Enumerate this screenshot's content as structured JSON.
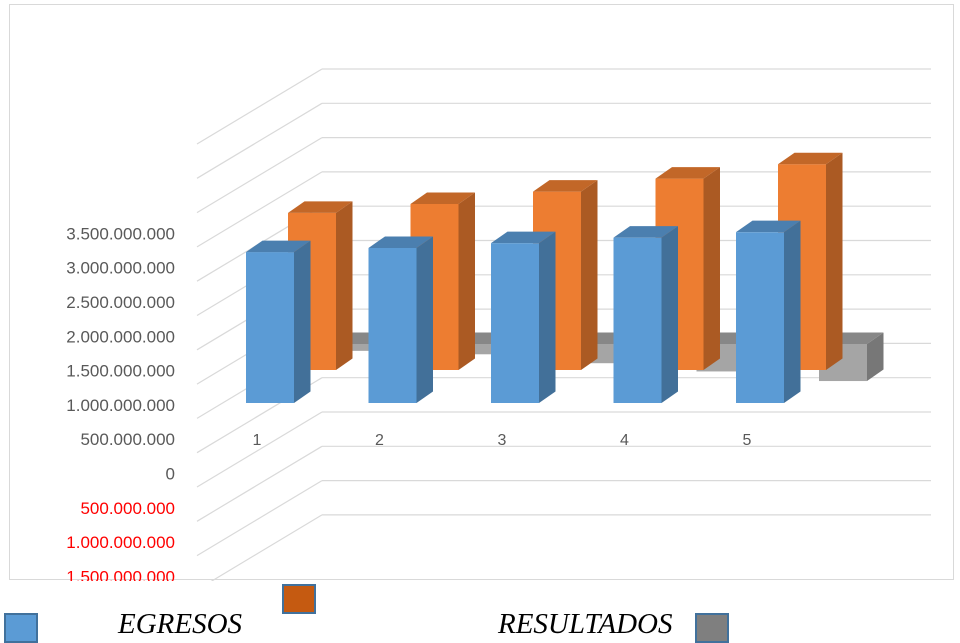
{
  "chart_data": {
    "type": "bar",
    "style": "3d-clustered-column",
    "categories": [
      "1",
      "2",
      "3",
      "4",
      "5"
    ],
    "series": [
      {
        "name": "EGRESOS",
        "color": "#5b9bd5",
        "values": [
          2200000000,
          2260000000,
          2330000000,
          2410000000,
          2490000000
        ]
      },
      {
        "color": "#ed7d31",
        "values": [
          2290000000,
          2420000000,
          2600000000,
          2790000000,
          3000000000
        ]
      },
      {
        "name": "RESULTADOS",
        "color": "#a5a5a5",
        "values": [
          -100000000,
          -150000000,
          -280000000,
          -400000000,
          -540000000
        ]
      }
    ],
    "ylim": [
      -1500000000,
      3500000000
    ],
    "yticks": [
      {
        "label": "3.500.000.000",
        "value": 3500000000,
        "color": "#595959"
      },
      {
        "label": "3.000.000.000",
        "value": 3000000000,
        "color": "#595959"
      },
      {
        "label": "2.500.000.000",
        "value": 2500000000,
        "color": "#595959"
      },
      {
        "label": "2.000.000.000",
        "value": 2000000000,
        "color": "#595959"
      },
      {
        "label": "1.500.000.000",
        "value": 1500000000,
        "color": "#595959"
      },
      {
        "label": "1.000.000.000",
        "value": 1000000000,
        "color": "#595959"
      },
      {
        "label": "500.000.000",
        "value": 500000000,
        "color": "#595959"
      },
      {
        "label": "0",
        "value": 0,
        "color": "#595959"
      },
      {
        "label": "500.000.000",
        "value": -500000000,
        "color": "#ff0000"
      },
      {
        "label": "1.000.000.000",
        "value": -1000000000,
        "color": "#ff0000"
      },
      {
        "label": "1.500.000.000",
        "value": -1500000000,
        "color": "#ff0000"
      }
    ],
    "grid": true,
    "legend": {
      "position": "bottom",
      "items": [
        {
          "label": "EGRESOS",
          "color": "#5b9bd5"
        },
        {
          "label": "",
          "color": "#c55a11"
        },
        {
          "label": "RESULTADOS",
          "color": "#7f7f7f"
        }
      ]
    }
  }
}
